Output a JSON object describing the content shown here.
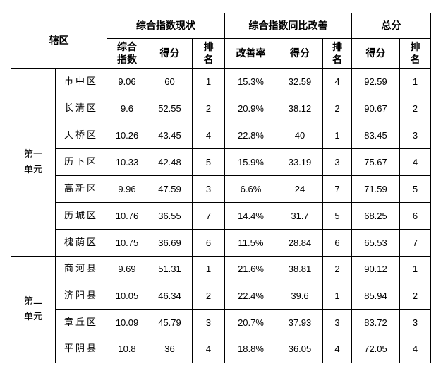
{
  "header": {
    "district": "辖区",
    "group_status": "综合指数现状",
    "group_improve": "综合指数同比改善",
    "group_total": "总分",
    "col_index": "综合指数",
    "col_score": "得分",
    "col_rank": "排名",
    "col_rate": "改善率",
    "col_score2": "得分",
    "col_rank2": "排名",
    "col_total_score": "得分",
    "col_total_rank": "排名"
  },
  "units": [
    {
      "name": "第一单元",
      "rows": [
        {
          "district": "市中区",
          "index": "9.06",
          "score": "60",
          "rank": "1",
          "rate": "15.3%",
          "score2": "32.59",
          "rank2": "4",
          "total": "92.59",
          "total_rank": "1"
        },
        {
          "district": "长清区",
          "index": "9.6",
          "score": "52.55",
          "rank": "2",
          "rate": "20.9%",
          "score2": "38.12",
          "rank2": "2",
          "total": "90.67",
          "total_rank": "2"
        },
        {
          "district": "天桥区",
          "index": "10.26",
          "score": "43.45",
          "rank": "4",
          "rate": "22.8%",
          "score2": "40",
          "rank2": "1",
          "total": "83.45",
          "total_rank": "3"
        },
        {
          "district": "历下区",
          "index": "10.33",
          "score": "42.48",
          "rank": "5",
          "rate": "15.9%",
          "score2": "33.19",
          "rank2": "3",
          "total": "75.67",
          "total_rank": "4"
        },
        {
          "district": "高新区",
          "index": "9.96",
          "score": "47.59",
          "rank": "3",
          "rate": "6.6%",
          "score2": "24",
          "rank2": "7",
          "total": "71.59",
          "total_rank": "5"
        },
        {
          "district": "历城区",
          "index": "10.76",
          "score": "36.55",
          "rank": "7",
          "rate": "14.4%",
          "score2": "31.7",
          "rank2": "5",
          "total": "68.25",
          "total_rank": "6"
        },
        {
          "district": "槐荫区",
          "index": "10.75",
          "score": "36.69",
          "rank": "6",
          "rate": "11.5%",
          "score2": "28.84",
          "rank2": "6",
          "total": "65.53",
          "total_rank": "7"
        }
      ]
    },
    {
      "name": "第二单元",
      "rows": [
        {
          "district": "商河县",
          "index": "9.69",
          "score": "51.31",
          "rank": "1",
          "rate": "21.6%",
          "score2": "38.81",
          "rank2": "2",
          "total": "90.12",
          "total_rank": "1"
        },
        {
          "district": "济阳县",
          "index": "10.05",
          "score": "46.34",
          "rank": "2",
          "rate": "22.4%",
          "score2": "39.6",
          "rank2": "1",
          "total": "85.94",
          "total_rank": "2"
        },
        {
          "district": "章丘区",
          "index": "10.09",
          "score": "45.79",
          "rank": "3",
          "rate": "20.7%",
          "score2": "37.93",
          "rank2": "3",
          "total": "83.72",
          "total_rank": "3"
        },
        {
          "district": "平阴县",
          "index": "10.8",
          "score": "36",
          "rank": "4",
          "rate": "18.8%",
          "score2": "36.05",
          "rank2": "4",
          "total": "72.05",
          "total_rank": "4"
        }
      ]
    }
  ]
}
